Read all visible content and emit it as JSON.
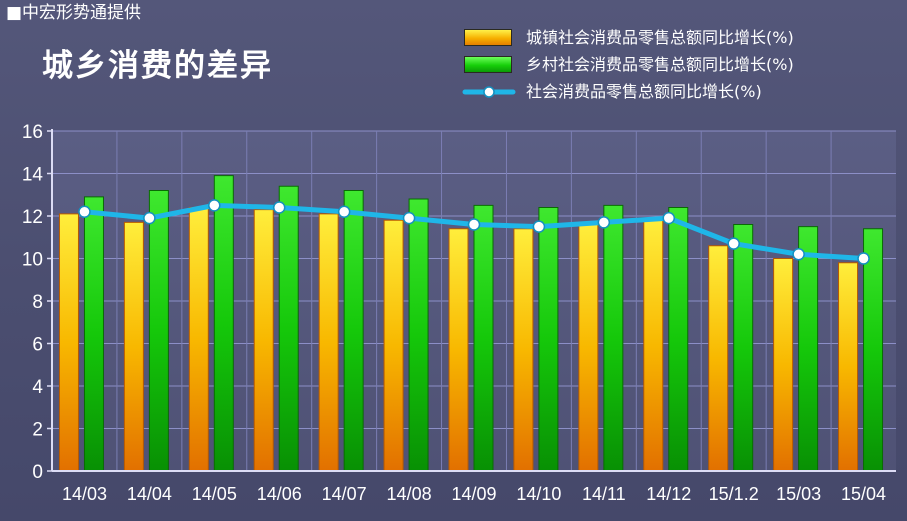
{
  "source_label": "■中宏形势通提供",
  "colors": {
    "background": "#4d5072",
    "grid": "#8c8fc7",
    "urban_bar": "#f6b000",
    "rural_bar": "#17cf0a",
    "total_line": "#1fb6e8",
    "text": "#ffffff"
  },
  "chart_data": {
    "type": "bar",
    "title": "城乡消费的差异",
    "xlabel": "",
    "ylabel": "",
    "ylim": [
      0,
      16
    ],
    "yticks": [
      0,
      2,
      4,
      6,
      8,
      10,
      12,
      14,
      16
    ],
    "grid": true,
    "legend_position": "top-right",
    "categories": [
      "14/03",
      "14/04",
      "14/05",
      "14/06",
      "14/07",
      "14/08",
      "14/09",
      "14/10",
      "14/11",
      "14/12",
      "15/1.2",
      "15/03",
      "15/04"
    ],
    "series": [
      {
        "name": "城镇社会消费品零售总额同比增长(%)",
        "type": "bar",
        "values": [
          12.1,
          11.7,
          12.4,
          12.3,
          12.1,
          11.8,
          11.4,
          11.4,
          11.6,
          11.8,
          10.6,
          10.0,
          9.8
        ]
      },
      {
        "name": "乡村社会消费品零售总额同比增长(%)",
        "type": "bar",
        "values": [
          12.9,
          13.2,
          13.9,
          13.4,
          13.2,
          12.8,
          12.5,
          12.4,
          12.5,
          12.4,
          11.6,
          11.5,
          11.4
        ]
      },
      {
        "name": "社会消费品零售总额同比增长(%)",
        "type": "line",
        "values": [
          12.2,
          11.9,
          12.5,
          12.4,
          12.2,
          11.9,
          11.6,
          11.5,
          11.7,
          11.9,
          10.7,
          10.2,
          10.0
        ]
      }
    ]
  }
}
